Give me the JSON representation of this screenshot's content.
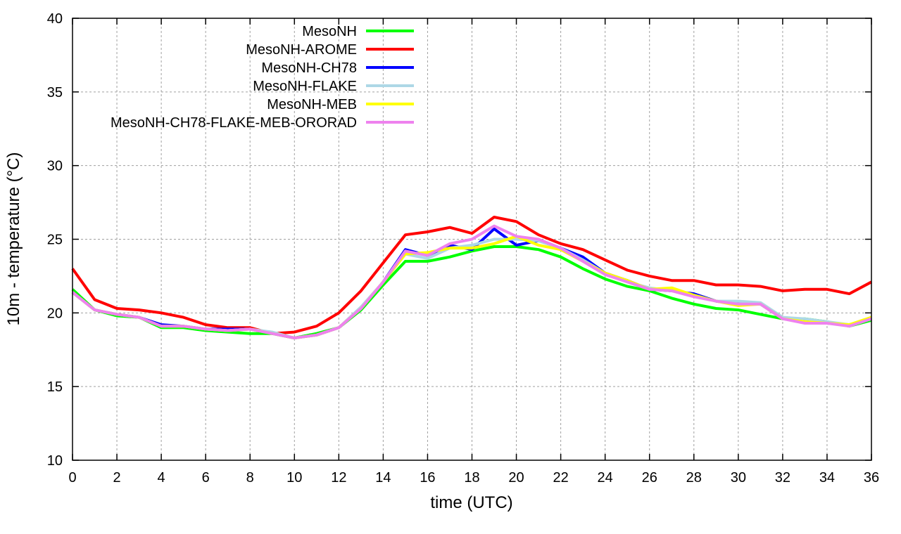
{
  "chart_data": {
    "type": "line",
    "title": "",
    "xlabel": "time (UTC)",
    "ylabel": "10m - temperature (°C)",
    "xlim": [
      0,
      36
    ],
    "ylim": [
      10,
      40
    ],
    "xticks": [
      0,
      2,
      4,
      6,
      8,
      10,
      12,
      14,
      16,
      18,
      20,
      22,
      24,
      26,
      28,
      30,
      32,
      34,
      36
    ],
    "yticks": [
      10,
      15,
      20,
      25,
      30,
      35,
      40
    ],
    "grid": true,
    "legend_position": "top-left",
    "x": [
      0,
      1,
      2,
      3,
      4,
      5,
      6,
      7,
      8,
      9,
      10,
      11,
      12,
      13,
      14,
      15,
      16,
      17,
      18,
      19,
      20,
      21,
      22,
      23,
      24,
      25,
      26,
      27,
      28,
      29,
      30,
      31,
      32,
      33,
      34,
      35,
      36
    ],
    "series": [
      {
        "name": "MesoNH",
        "color": "#00ff00",
        "values": [
          21.6,
          20.2,
          19.8,
          19.7,
          19.0,
          19.0,
          18.8,
          18.7,
          18.6,
          18.6,
          18.3,
          18.6,
          19.0,
          20.2,
          21.9,
          23.5,
          23.5,
          23.8,
          24.2,
          24.5,
          24.5,
          24.3,
          23.8,
          23.0,
          22.3,
          21.8,
          21.5,
          21.0,
          20.6,
          20.3,
          20.2,
          19.9,
          19.6,
          19.6,
          19.4,
          19.1,
          19.5
        ]
      },
      {
        "name": "MesoNH-AROME",
        "color": "#ff0000",
        "values": [
          23.0,
          20.9,
          20.3,
          20.2,
          20.0,
          19.7,
          19.2,
          19.0,
          19.0,
          18.6,
          18.7,
          19.1,
          20.0,
          21.5,
          23.4,
          25.3,
          25.5,
          25.8,
          25.4,
          26.5,
          26.2,
          25.3,
          24.7,
          24.3,
          23.6,
          22.9,
          22.5,
          22.2,
          22.2,
          21.9,
          21.9,
          21.8,
          21.5,
          21.6,
          21.6,
          21.3,
          22.1
        ]
      },
      {
        "name": "MesoNH-CH78",
        "color": "#0000ff",
        "values": [
          21.4,
          20.2,
          19.9,
          19.7,
          19.2,
          19.1,
          18.9,
          18.9,
          18.9,
          18.6,
          18.3,
          18.5,
          19.0,
          20.3,
          22.1,
          24.3,
          23.9,
          24.6,
          24.3,
          25.7,
          24.6,
          24.9,
          24.4,
          23.8,
          22.7,
          22.2,
          21.6,
          21.5,
          21.3,
          20.8,
          20.6,
          20.6,
          19.6,
          19.4,
          19.3,
          19.2,
          19.6
        ]
      },
      {
        "name": "MesoNH-FLAKE",
        "color": "#add8e6",
        "values": [
          21.4,
          20.2,
          19.9,
          19.7,
          19.1,
          19.1,
          18.9,
          18.8,
          18.9,
          18.7,
          18.3,
          18.5,
          19.0,
          20.4,
          22.1,
          24.0,
          23.7,
          24.4,
          24.6,
          25.0,
          25.0,
          24.9,
          24.4,
          23.6,
          22.7,
          22.1,
          21.7,
          21.5,
          21.2,
          20.8,
          20.8,
          20.7,
          19.7,
          19.6,
          19.4,
          19.2,
          19.7
        ]
      },
      {
        "name": "MesoNH-MEB",
        "color": "#ffff00",
        "values": [
          21.4,
          20.2,
          19.9,
          19.7,
          19.1,
          19.1,
          18.9,
          18.8,
          18.9,
          18.6,
          18.3,
          18.5,
          19.0,
          20.3,
          22.1,
          24.0,
          24.1,
          24.4,
          24.4,
          24.7,
          25.2,
          24.6,
          24.3,
          23.5,
          22.7,
          22.2,
          21.6,
          21.7,
          21.2,
          20.8,
          20.5,
          20.6,
          19.6,
          19.4,
          19.3,
          19.2,
          19.7
        ]
      },
      {
        "name": "MesoNH-CH78-FLAKE-MEB-ORORAD",
        "color": "#ee82ee",
        "values": [
          21.4,
          20.2,
          19.9,
          19.7,
          19.1,
          19.1,
          18.9,
          18.8,
          18.9,
          18.6,
          18.3,
          18.5,
          19.0,
          20.3,
          22.1,
          24.2,
          23.9,
          24.7,
          25.0,
          25.9,
          25.2,
          25.0,
          24.4,
          23.5,
          22.6,
          22.1,
          21.6,
          21.5,
          21.1,
          20.8,
          20.6,
          20.6,
          19.6,
          19.3,
          19.3,
          19.1,
          19.6
        ]
      }
    ]
  }
}
